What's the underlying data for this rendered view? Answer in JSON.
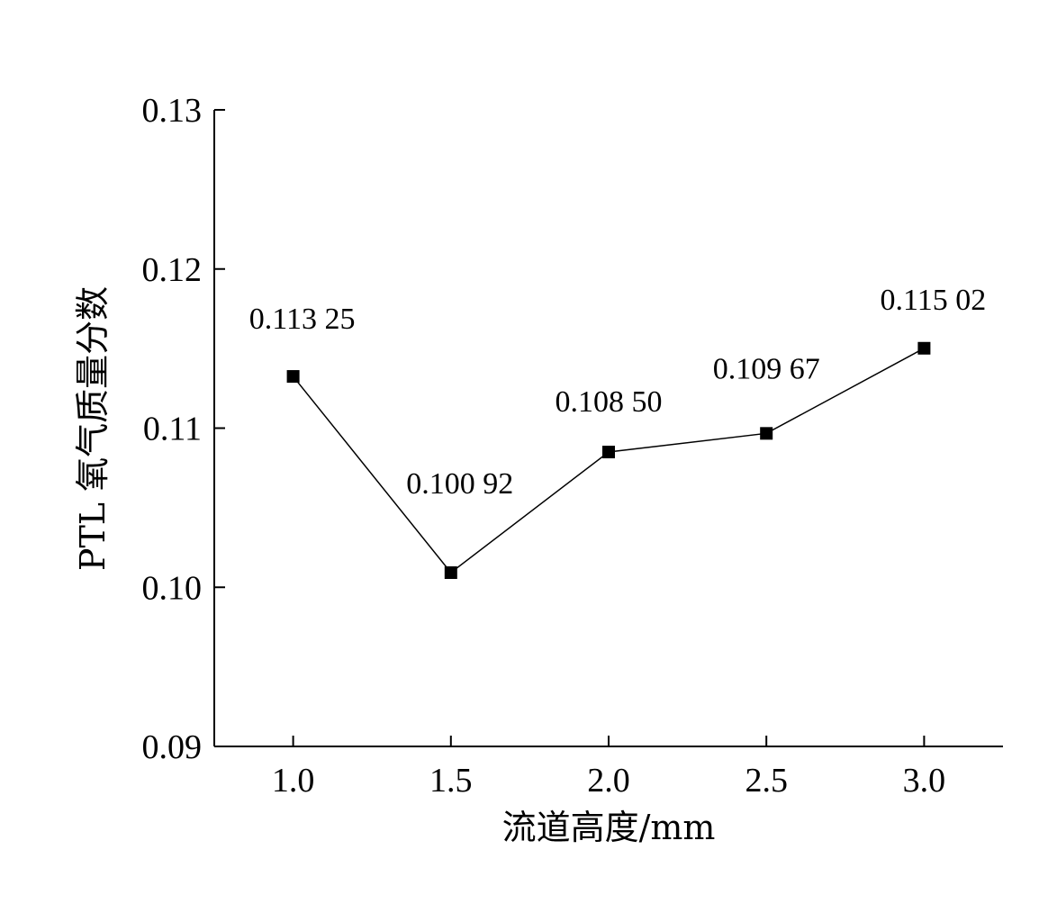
{
  "chart_data": {
    "type": "line",
    "xlabel": "流道高度/mm",
    "ylabel": "PTL 氧气质量分数",
    "x": [
      1.0,
      1.5,
      2.0,
      2.5,
      3.0
    ],
    "x_tick_labels": [
      "1.0",
      "1.5",
      "2.0",
      "2.5",
      "3.0"
    ],
    "xlim": [
      0.75,
      3.25
    ],
    "ylim": [
      0.09,
      0.13
    ],
    "y_ticks": [
      0.09,
      0.1,
      0.11,
      0.12,
      0.13
    ],
    "y_tick_labels": [
      "0.09",
      "0.10",
      "0.11",
      "0.12",
      "0.13"
    ],
    "series": [
      {
        "values": [
          0.11325,
          0.10092,
          0.1085,
          0.10967,
          0.11502
        ],
        "data_labels": [
          "0.113 25",
          "0.100 92",
          "0.108 50",
          "0.109 67",
          "0.115 02"
        ],
        "color": "#000000",
        "marker": "square"
      }
    ],
    "grid": false,
    "legend": "none"
  }
}
